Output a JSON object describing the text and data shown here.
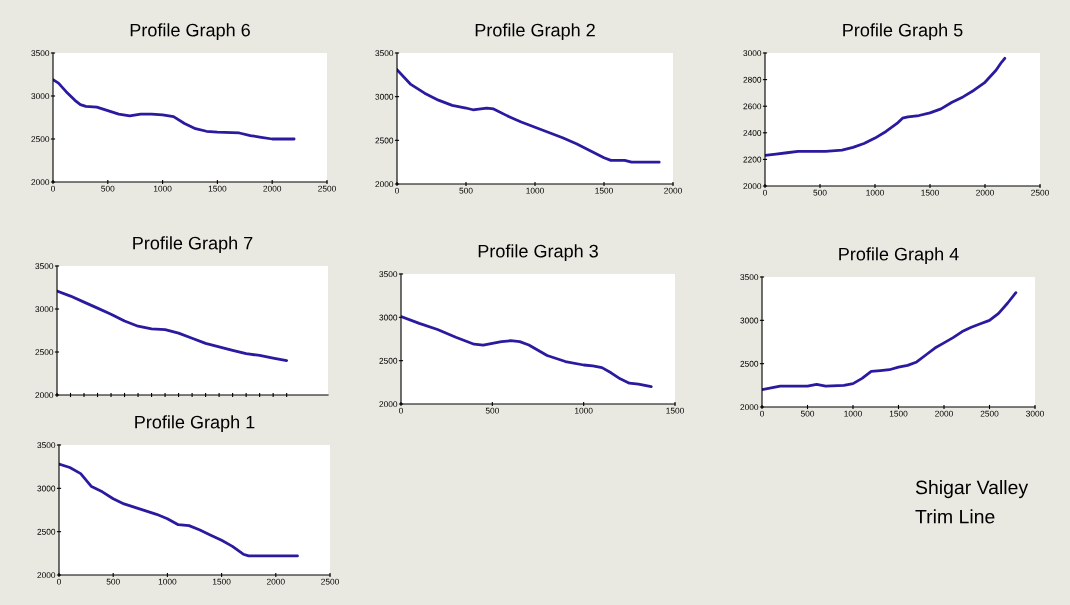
{
  "chart_data": [
    {
      "type": "line",
      "title": "Profile Graph 6",
      "x": [
        0,
        50,
        120,
        200,
        250,
        300,
        400,
        500,
        600,
        700,
        800,
        900,
        1000,
        1100,
        1200,
        1300,
        1400,
        1500,
        1700,
        1800,
        1900,
        2000,
        2200
      ],
      "series": [
        {
          "color": "#2a1aa0",
          "values": [
            3190,
            3150,
            3050,
            2950,
            2900,
            2880,
            2870,
            2830,
            2790,
            2770,
            2790,
            2790,
            2780,
            2760,
            2680,
            2620,
            2590,
            2580,
            2570,
            2540,
            2520,
            2500,
            2500
          ]
        }
      ],
      "xlim": [
        0,
        2500
      ],
      "xticks": [
        0,
        500,
        1000,
        1500,
        2000,
        2500
      ],
      "ylim": [
        2000,
        3500
      ],
      "yticks": [
        2000,
        2500,
        3000,
        3500
      ],
      "grid": false,
      "legend": false
    },
    {
      "type": "line",
      "title": "Profile Graph 2",
      "x": [
        0,
        100,
        200,
        300,
        400,
        500,
        550,
        650,
        700,
        800,
        900,
        1000,
        1100,
        1200,
        1300,
        1400,
        1500,
        1550,
        1650,
        1700,
        1900
      ],
      "series": [
        {
          "color": "#2a1aa0",
          "values": [
            3310,
            3140,
            3040,
            2960,
            2900,
            2870,
            2850,
            2870,
            2860,
            2780,
            2710,
            2650,
            2590,
            2530,
            2460,
            2380,
            2300,
            2270,
            2270,
            2250,
            2250
          ]
        }
      ],
      "xlim": [
        0,
        2000
      ],
      "xticks": [
        0,
        500,
        1000,
        1500,
        2000
      ],
      "ylim": [
        2000,
        3500
      ],
      "yticks": [
        2000,
        2500,
        3000,
        3500
      ],
      "grid": false,
      "legend": false
    },
    {
      "type": "line",
      "title": "Profile Graph 5",
      "x": [
        0,
        100,
        200,
        300,
        550,
        700,
        800,
        900,
        1000,
        1100,
        1200,
        1250,
        1300,
        1400,
        1500,
        1600,
        1700,
        1800,
        1900,
        2000,
        2100,
        2150,
        2180
      ],
      "series": [
        {
          "color": "#2a1aa0",
          "values": [
            2230,
            2240,
            2250,
            2260,
            2260,
            2270,
            2290,
            2320,
            2360,
            2410,
            2470,
            2510,
            2520,
            2530,
            2550,
            2580,
            2630,
            2670,
            2720,
            2780,
            2870,
            2930,
            2960
          ]
        }
      ],
      "xlim": [
        0,
        2500
      ],
      "xticks": [
        0,
        500,
        1000,
        1500,
        2000,
        2500
      ],
      "ylim": [
        2000,
        3000
      ],
      "yticks": [
        2000,
        2200,
        2400,
        2600,
        2800,
        3000
      ],
      "grid": false,
      "legend": false
    },
    {
      "type": "line",
      "title": "Profile Graph 7",
      "categories": [
        null,
        null,
        null,
        null,
        null,
        null,
        null,
        null,
        null,
        null,
        null,
        null,
        null,
        null,
        null,
        null,
        null,
        null
      ],
      "series": [
        {
          "color": "#2a1aa0",
          "values": [
            3210,
            3150,
            3080,
            3010,
            2940,
            2860,
            2800,
            2770,
            2760,
            2720,
            2660,
            2600,
            2560,
            2520,
            2480,
            2460,
            2430,
            2400
          ]
        }
      ],
      "ylim": [
        2000,
        3500
      ],
      "yticks": [
        2000,
        2500,
        3000,
        3500
      ],
      "grid": false,
      "legend": false
    },
    {
      "type": "line",
      "title": "Profile Graph 3",
      "x": [
        0,
        100,
        200,
        300,
        400,
        450,
        500,
        550,
        600,
        650,
        700,
        750,
        800,
        900,
        1000,
        1050,
        1100,
        1150,
        1200,
        1250,
        1300,
        1370
      ],
      "series": [
        {
          "color": "#2a1aa0",
          "values": [
            3010,
            2930,
            2860,
            2770,
            2690,
            2680,
            2700,
            2720,
            2730,
            2720,
            2680,
            2620,
            2560,
            2490,
            2450,
            2440,
            2420,
            2360,
            2290,
            2240,
            2230,
            2200
          ]
        }
      ],
      "xlim": [
        0,
        1500
      ],
      "xticks": [
        0,
        500,
        1000,
        1500
      ],
      "ylim": [
        2000,
        3500
      ],
      "yticks": [
        2000,
        2500,
        3000,
        3500
      ],
      "grid": false,
      "legend": false
    },
    {
      "type": "line",
      "title": "Profile Graph 4",
      "x": [
        0,
        200,
        500,
        600,
        700,
        900,
        1000,
        1100,
        1200,
        1300,
        1400,
        1500,
        1600,
        1700,
        1800,
        1900,
        2000,
        2100,
        2200,
        2300,
        2400,
        2500,
        2600,
        2700,
        2790
      ],
      "series": [
        {
          "color": "#2a1aa0",
          "values": [
            2200,
            2240,
            2240,
            2260,
            2240,
            2250,
            2270,
            2330,
            2410,
            2420,
            2430,
            2460,
            2480,
            2520,
            2600,
            2680,
            2740,
            2800,
            2870,
            2920,
            2960,
            3000,
            3080,
            3200,
            3320
          ]
        }
      ],
      "xlim": [
        0,
        3000
      ],
      "xticks": [
        0,
        500,
        1000,
        1500,
        2000,
        2500,
        3000
      ],
      "ylim": [
        2000,
        3500
      ],
      "yticks": [
        2000,
        2500,
        3000,
        3500
      ],
      "grid": false,
      "legend": false
    },
    {
      "type": "line",
      "title": "Profile Graph 1",
      "x": [
        0,
        100,
        200,
        300,
        400,
        500,
        600,
        700,
        800,
        900,
        1000,
        1100,
        1200,
        1300,
        1400,
        1500,
        1600,
        1700,
        1750,
        2200
      ],
      "series": [
        {
          "color": "#2a1aa0",
          "values": [
            3280,
            3240,
            3170,
            3020,
            2960,
            2880,
            2820,
            2780,
            2740,
            2700,
            2650,
            2580,
            2570,
            2520,
            2460,
            2400,
            2330,
            2240,
            2220,
            2220
          ]
        }
      ],
      "xlim": [
        0,
        2500
      ],
      "xticks": [
        0,
        500,
        1000,
        1500,
        2000,
        2500
      ],
      "ylim": [
        2000,
        3500
      ],
      "yticks": [
        2000,
        2500,
        3000,
        3500
      ],
      "grid": false,
      "legend": false
    },
    {
      "type": "other",
      "annotations": [
        "Shigar Valley",
        "Trim Line"
      ]
    }
  ]
}
